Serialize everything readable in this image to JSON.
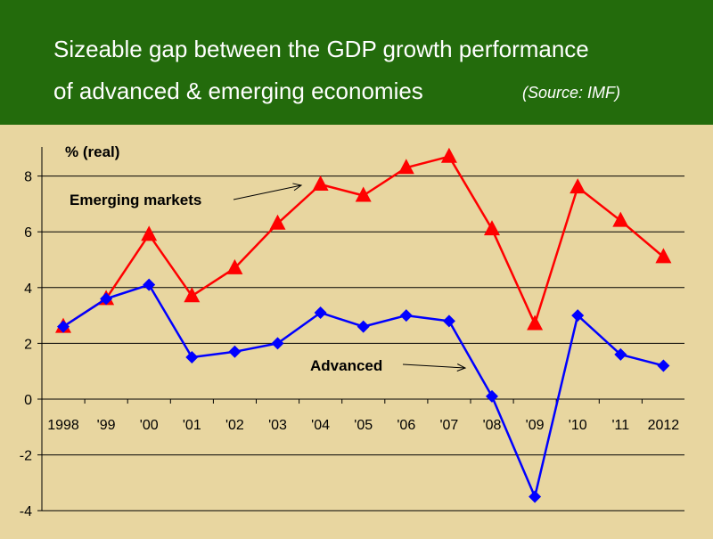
{
  "slide": {
    "title_line1": "Sizeable gap between the GDP growth performance",
    "title_line2": "of advanced & emerging economies",
    "source": "(Source: IMF)",
    "header_color": "#236b0c",
    "background_color": "#e8d6a0"
  },
  "chart_data": {
    "type": "line",
    "categories": [
      "1998",
      "'99",
      "'00",
      "'01",
      "'02",
      "'03",
      "'04",
      "'05",
      "'06",
      "'07",
      "'08",
      "'09",
      "'10",
      "'11",
      "2012"
    ],
    "ylabel": "% (real)",
    "ylim": [
      -4,
      9
    ],
    "yticks": [
      -4,
      -2,
      0,
      2,
      4,
      6,
      8
    ],
    "grid": true,
    "series": [
      {
        "name": "Emerging markets",
        "color": "#ff0000",
        "marker": "triangle",
        "values": [
          2.6,
          3.6,
          5.9,
          3.7,
          4.7,
          6.3,
          7.7,
          7.3,
          8.3,
          8.7,
          6.1,
          2.7,
          7.6,
          6.4,
          5.1
        ]
      },
      {
        "name": "Advanced",
        "color": "#0000ff",
        "marker": "diamond",
        "values": [
          2.6,
          3.6,
          4.1,
          1.5,
          1.7,
          2.0,
          3.1,
          2.6,
          3.0,
          2.8,
          0.1,
          -3.5,
          3.0,
          1.6,
          1.2
        ]
      }
    ]
  }
}
